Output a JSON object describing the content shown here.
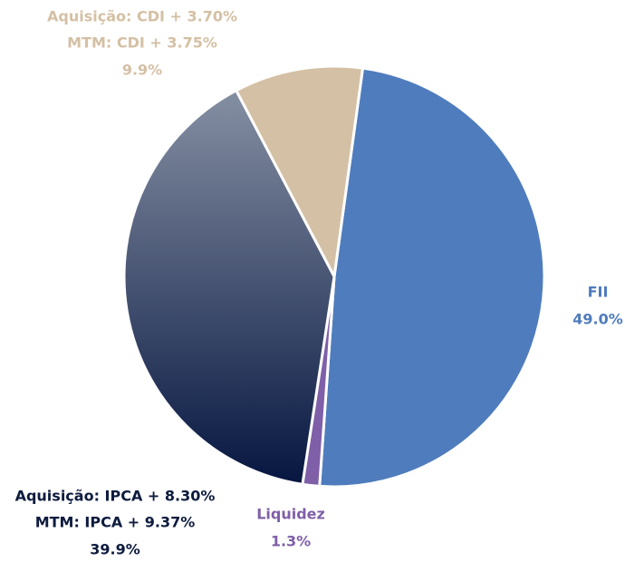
{
  "chart_data": {
    "type": "pie",
    "categories": [
      [
        "FII"
      ],
      [
        "Liquidez"
      ],
      [
        "Aquisição: IPCA + 8.30%",
        "MTM: IPCA + 9.37%"
      ],
      [
        "Aquisição: CDI + 3.70%",
        "MTM: CDI + 3.75%"
      ]
    ],
    "values": [
      49.0,
      1.3,
      39.9,
      9.9
    ],
    "value_labels": [
      "49.0%",
      "1.3%",
      "39.9%",
      "9.9%"
    ],
    "colors": [
      "#4f7cbd",
      "#7f5fa8",
      "#1a2a55",
      "#d4c0a4"
    ],
    "label_colors": [
      "#4f7cbd",
      "#7f5fa8",
      "#0d1b3e",
      "#d4c0a4"
    ]
  }
}
